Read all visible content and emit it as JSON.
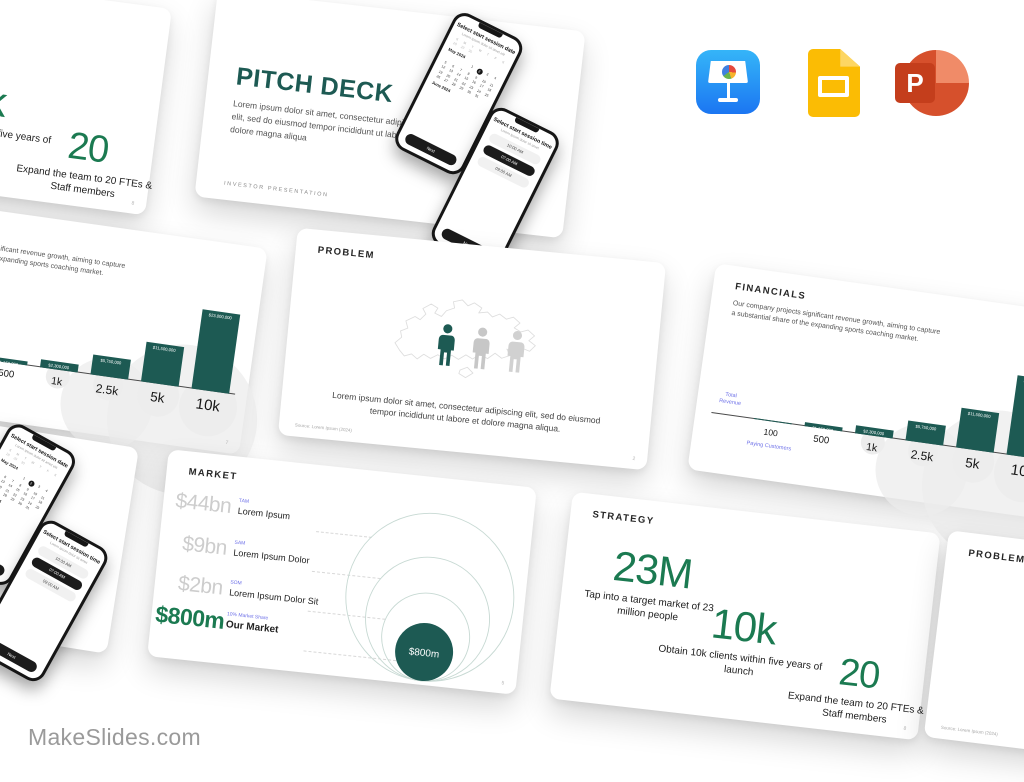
{
  "brand": {
    "name": "MakeSlides.com"
  },
  "app_icons": {
    "keynote": "Keynote",
    "google_slides": "Google Slides",
    "powerpoint": "PowerPoint",
    "powerpoint_letter": "P"
  },
  "colors": {
    "teal": "#1d5a53",
    "green": "#1b7a51",
    "purple": "#6f72e8",
    "keynote_blue": "#1b76f2",
    "slides_yellow": "#fbbc04",
    "powerpoint_red": "#d6502c"
  },
  "slides": {
    "pitch_deck": {
      "title": "PITCH DECK",
      "body": "Lorem ipsum dolor sit amet, consectetur adipiscing elit, sed do eiusmod tempor incididunt ut labore et dolore magna aliqua",
      "footer": "INVESTOR  PRESENTATION"
    },
    "phone_date": {
      "title": "Select start session date",
      "subtitle": "Lorem ipsum dolor sit amet elit",
      "weekdays": [
        "S",
        "M",
        "T",
        "W",
        "T",
        "F",
        "S"
      ],
      "prev_days": [
        28,
        29,
        30
      ],
      "month_label": "May 2024",
      "days_in_month": 31,
      "start_weekday": 3,
      "selected_day": 2,
      "next_month_label": "June 2024",
      "button_label": "Next"
    },
    "phone_time": {
      "title": "Select start session time",
      "subtitle": "Lorem ipsum dolor sit amet",
      "options": [
        "10:00 AM",
        "07:00 AM",
        "09:00 AM"
      ],
      "selected_index": 1,
      "button_label": "Next"
    },
    "problem": {
      "header": "PROBLEM",
      "body": "Lorem ipsum dolor sit amet, consectetur adipiscing elit, sed do eiusmod tempor incididunt ut labore et dolore magna aliqua.",
      "source": "Source: Lorem Ipsum (2024)",
      "page_number": "2"
    },
    "financials": {
      "header": "FINANCIALS",
      "body": "Our company projects significant revenue growth, aiming to capture a substantial share of the expanding sports coaching market.",
      "y_axis_label": "Total Revenue",
      "x_axis_label": "Paying Customers",
      "page_number": "7"
    },
    "market": {
      "header": "MARKET",
      "rows": [
        {
          "value": "$44bn",
          "tag": "TAM",
          "name": "Lorem Ipsum"
        },
        {
          "value": "$9bn",
          "tag": "SAM",
          "name": "Lorem Ipsum Dolor"
        },
        {
          "value": "$2bn",
          "tag": "SOM",
          "name": "Lorem Ipsum Dolor Sit"
        },
        {
          "value": "$800m",
          "tag": "10% Market Share",
          "name": "Our Market"
        }
      ],
      "bubble_label": "$800m",
      "page_number": "5"
    },
    "strategy": {
      "header": "STRATEGY",
      "stats": [
        {
          "value": "23M",
          "caption": "Tap into a target market of 23 million people"
        },
        {
          "value": "10k",
          "caption": "Obtain 10k clients within five years of launch"
        },
        {
          "value": "20",
          "caption": "Expand the team to 20 FTEs & Staff members"
        }
      ],
      "page_number": "8"
    }
  },
  "chart_data": {
    "type": "bar",
    "title": "FINANCIALS",
    "categories": [
      "100",
      "500",
      "1k",
      "2.5k",
      "5k",
      "10k"
    ],
    "values": [
      230000,
      1150000,
      2300000,
      5750000,
      11500000,
      23000000
    ],
    "bar_labels": [
      "",
      "$1,150,000",
      "$2,300,000",
      "$5,750,000",
      "$11,500,000",
      "$23,000,000"
    ],
    "xlabel": "Paying Customers",
    "ylabel": "Total Revenue",
    "ylim": [
      0,
      23000000
    ],
    "grid": false,
    "bar_color": "#1d5a53"
  }
}
